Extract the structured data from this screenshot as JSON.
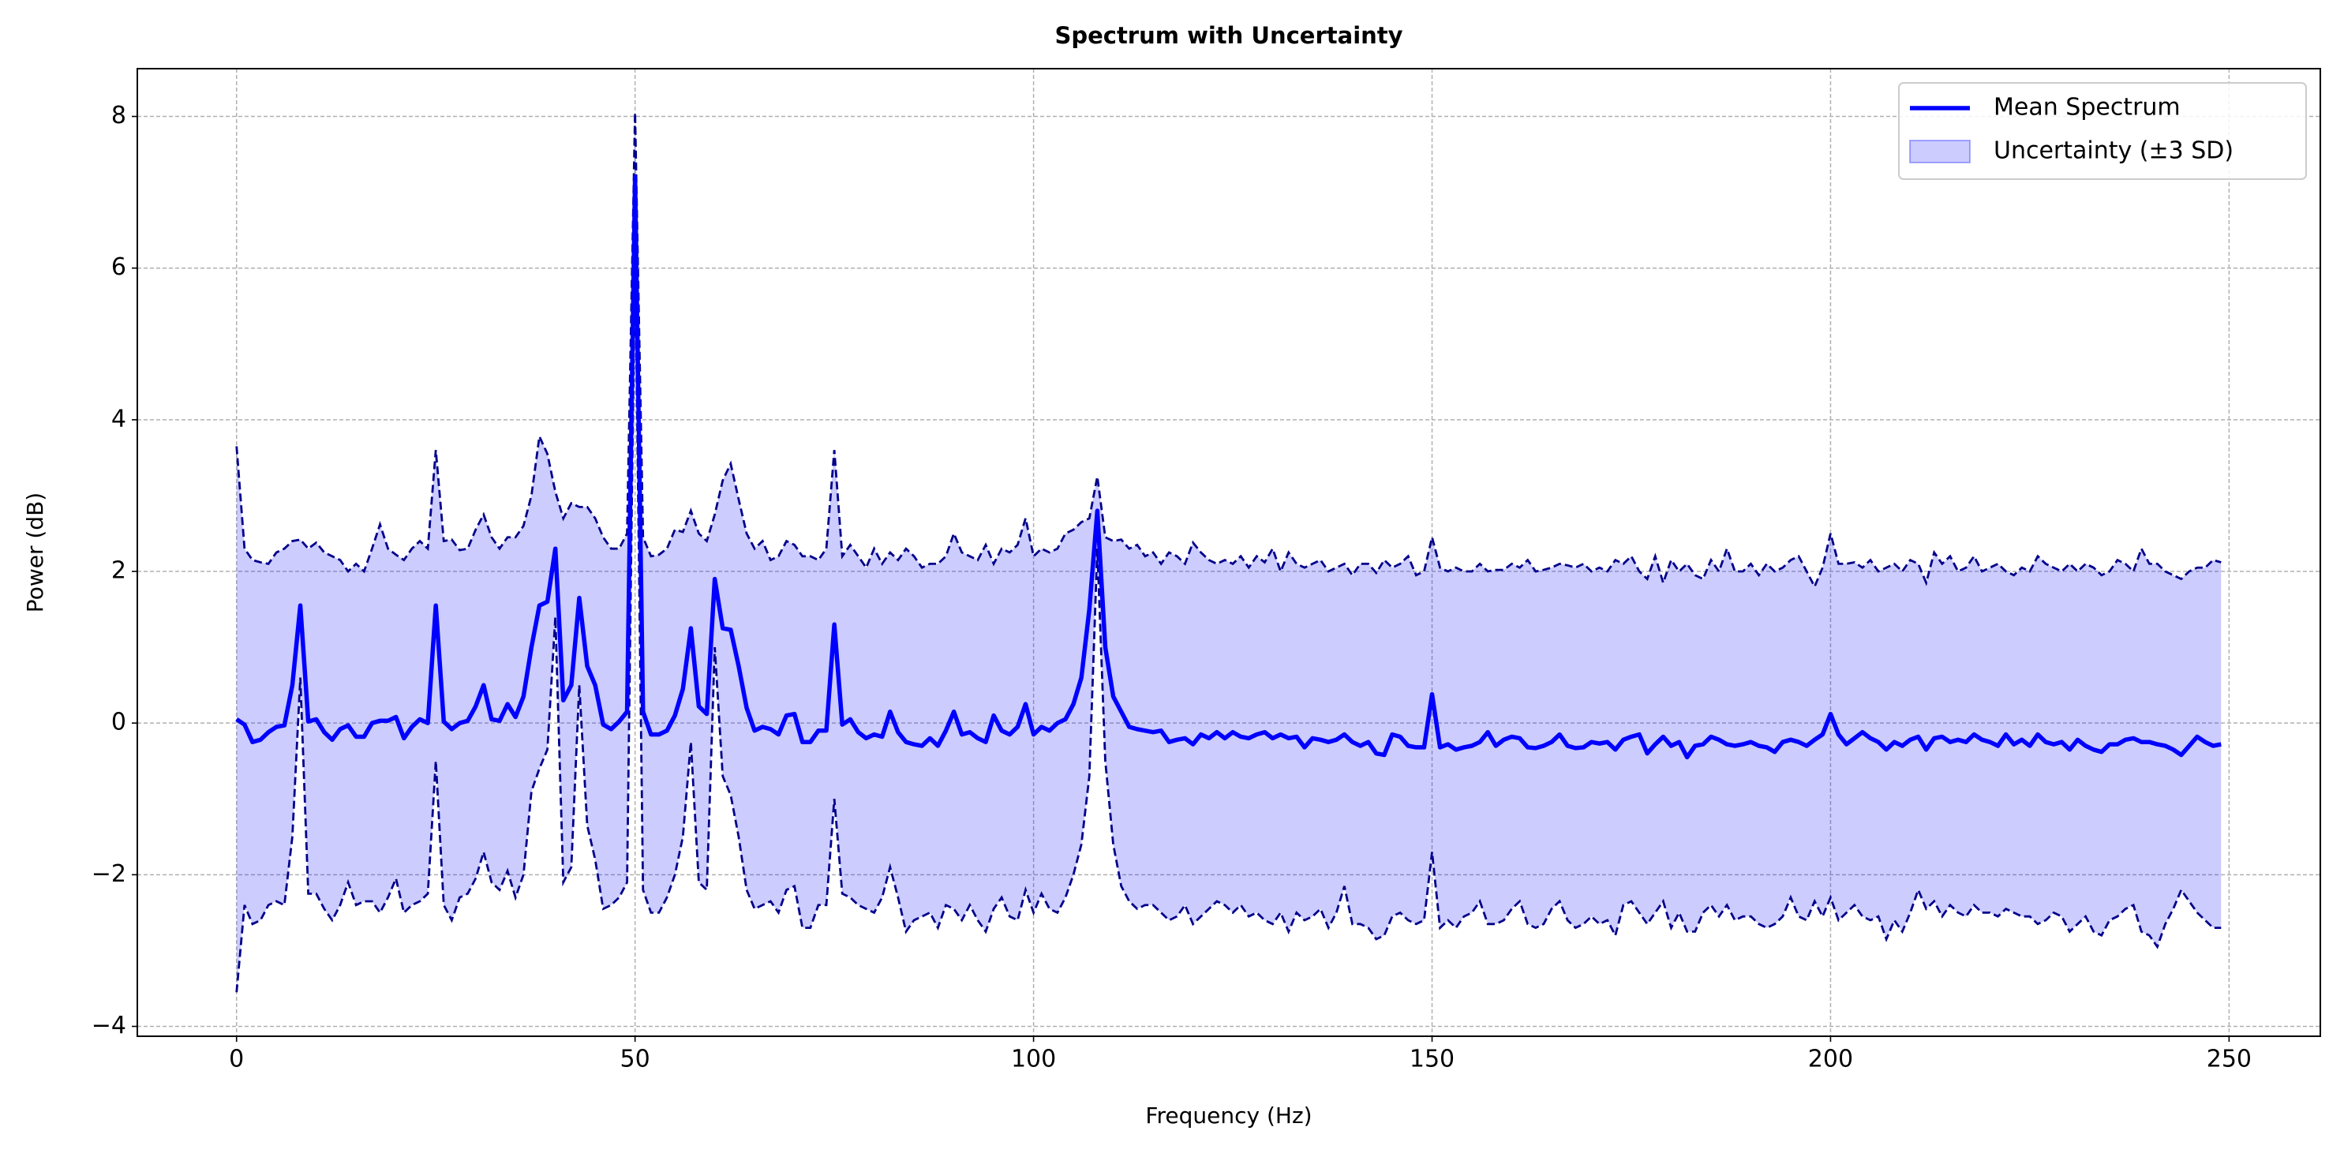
{
  "chart_data": {
    "type": "line",
    "title": "Spectrum with Uncertainty",
    "xlabel": "Frequency (Hz)",
    "ylabel": "Power (dB)",
    "xlim": [
      -12.45,
      261.45
    ],
    "ylim": [
      -4.13,
      8.63
    ],
    "xticks": [
      0,
      50,
      100,
      150,
      200,
      250
    ],
    "yticks": [
      {
        "value": -4,
        "label": "−4"
      },
      {
        "value": -2,
        "label": "−2"
      },
      0,
      2,
      4,
      6,
      8
    ],
    "grid": true,
    "legend": "upper right",
    "x": [
      0,
      1,
      2,
      3,
      4,
      5,
      6,
      7,
      8,
      9,
      10,
      11,
      12,
      13,
      14,
      15,
      16,
      17,
      18,
      19,
      20,
      21,
      22,
      23,
      24,
      25,
      26,
      27,
      28,
      29,
      30,
      31,
      32,
      33,
      34,
      35,
      36,
      37,
      38,
      39,
      40,
      41,
      42,
      43,
      44,
      45,
      46,
      47,
      48,
      49,
      50,
      51,
      52,
      53,
      54,
      55,
      56,
      57,
      58,
      59,
      60,
      61,
      62,
      63,
      64,
      65,
      66,
      67,
      68,
      69,
      70,
      71,
      72,
      73,
      74,
      75,
      76,
      77,
      78,
      79,
      80,
      81,
      82,
      83,
      84,
      85,
      86,
      87,
      88,
      89,
      90,
      91,
      92,
      93,
      94,
      95,
      96,
      97,
      98,
      99,
      100,
      101,
      102,
      103,
      104,
      105,
      106,
      107,
      108,
      109,
      110,
      111,
      112,
      113,
      114,
      115,
      116,
      117,
      118,
      119,
      120,
      121,
      122,
      123,
      124,
      125,
      126,
      127,
      128,
      129,
      130,
      131,
      132,
      133,
      134,
      135,
      136,
      137,
      138,
      139,
      140,
      141,
      142,
      143,
      144,
      145,
      146,
      147,
      148,
      149,
      150,
      151,
      152,
      153,
      154,
      155,
      156,
      157,
      158,
      159,
      160,
      161,
      162,
      163,
      164,
      165,
      166,
      167,
      168,
      169,
      170,
      171,
      172,
      173,
      174,
      175,
      176,
      177,
      178,
      179,
      180,
      181,
      182,
      183,
      184,
      185,
      186,
      187,
      188,
      189,
      190,
      191,
      192,
      193,
      194,
      195,
      196,
      197,
      198,
      199,
      200,
      201,
      202,
      203,
      204,
      205,
      206,
      207,
      208,
      209,
      210,
      211,
      212,
      213,
      214,
      215,
      216,
      217,
      218,
      219,
      220,
      221,
      222,
      223,
      224,
      225,
      226,
      227,
      228,
      229,
      230,
      231,
      232,
      233,
      234,
      235,
      236,
      237,
      238,
      239,
      240,
      241,
      242,
      243,
      244,
      245,
      246,
      247,
      248,
      249
    ],
    "series": [
      {
        "name": "Mean Spectrum",
        "color": "#0000ff",
        "values": [
          0.05,
          -0.02,
          -0.25,
          -0.22,
          -0.12,
          -0.05,
          -0.03,
          0.5,
          1.55,
          0.02,
          0.05,
          -0.12,
          -0.22,
          -0.08,
          -0.03,
          -0.18,
          -0.18,
          0.0,
          0.03,
          0.03,
          0.08,
          -0.2,
          -0.05,
          0.05,
          0.0,
          1.55,
          0.02,
          -0.08,
          0.0,
          0.03,
          0.22,
          0.5,
          0.05,
          0.03,
          0.25,
          0.08,
          0.35,
          1.0,
          1.55,
          1.6,
          2.3,
          0.3,
          0.5,
          1.65,
          0.75,
          0.5,
          -0.02,
          -0.08,
          0.02,
          0.15,
          7.2,
          0.15,
          -0.15,
          -0.15,
          -0.1,
          0.1,
          0.45,
          1.25,
          0.22,
          0.12,
          1.9,
          1.25,
          1.23,
          0.75,
          0.2,
          -0.1,
          -0.05,
          -0.08,
          -0.15,
          0.1,
          0.12,
          -0.25,
          -0.25,
          -0.1,
          -0.1,
          1.3,
          -0.02,
          0.05,
          -0.12,
          -0.2,
          -0.15,
          -0.18,
          0.15,
          -0.12,
          -0.25,
          -0.28,
          -0.3,
          -0.2,
          -0.3,
          -0.1,
          0.15,
          -0.15,
          -0.12,
          -0.2,
          -0.25,
          0.1,
          -0.1,
          -0.15,
          -0.05,
          0.25,
          -0.15,
          -0.05,
          -0.1,
          0.0,
          0.05,
          0.25,
          0.6,
          1.5,
          2.8,
          1.0,
          0.35,
          0.15,
          -0.05,
          -0.08,
          -0.1,
          -0.12,
          -0.1,
          -0.25,
          -0.22,
          -0.2,
          -0.28,
          -0.15,
          -0.2,
          -0.12,
          -0.2,
          -0.12,
          -0.18,
          -0.2,
          -0.15,
          -0.12,
          -0.2,
          -0.15,
          -0.2,
          -0.18,
          -0.32,
          -0.2,
          -0.22,
          -0.25,
          -0.22,
          -0.15,
          -0.25,
          -0.3,
          -0.25,
          -0.4,
          -0.42,
          -0.15,
          -0.18,
          -0.3,
          -0.32,
          -0.32,
          0.38,
          -0.32,
          -0.28,
          -0.35,
          -0.32,
          -0.3,
          -0.25,
          -0.12,
          -0.3,
          -0.22,
          -0.18,
          -0.2,
          -0.32,
          -0.33,
          -0.3,
          -0.25,
          -0.15,
          -0.3,
          -0.33,
          -0.32,
          -0.25,
          -0.27,
          -0.25,
          -0.35,
          -0.22,
          -0.18,
          -0.15,
          -0.4,
          -0.28,
          -0.18,
          -0.3,
          -0.25,
          -0.45,
          -0.3,
          -0.28,
          -0.18,
          -0.22,
          -0.28,
          -0.3,
          -0.28,
          -0.25,
          -0.3,
          -0.32,
          -0.38,
          -0.25,
          -0.22,
          -0.25,
          -0.3,
          -0.22,
          -0.15,
          0.12,
          -0.15,
          -0.28,
          -0.2,
          -0.12,
          -0.2,
          -0.25,
          -0.35,
          -0.25,
          -0.3,
          -0.22,
          -0.18,
          -0.35,
          -0.2,
          -0.18,
          -0.25,
          -0.22,
          -0.25,
          -0.15,
          -0.22,
          -0.25,
          -0.3,
          -0.15,
          -0.28,
          -0.22,
          -0.3,
          -0.15,
          -0.25,
          -0.28,
          -0.25,
          -0.35,
          -0.22,
          -0.3,
          -0.35,
          -0.38,
          -0.28,
          -0.28,
          -0.22,
          -0.2,
          -0.25,
          -0.25,
          -0.28,
          -0.3,
          -0.35,
          -0.42,
          -0.3,
          -0.18,
          -0.25,
          -0.3,
          -0.28
        ]
      }
    ],
    "band": {
      "name": "Uncertainty (±3 SD)",
      "color": "#0000ff",
      "line_color": "#00008b",
      "upper": [
        3.65,
        2.3,
        2.15,
        2.12,
        2.1,
        2.25,
        2.3,
        2.4,
        2.42,
        2.3,
        2.38,
        2.25,
        2.2,
        2.15,
        2.0,
        2.1,
        2.0,
        2.3,
        2.62,
        2.3,
        2.22,
        2.15,
        2.3,
        2.4,
        2.3,
        3.6,
        2.4,
        2.42,
        2.28,
        2.3,
        2.55,
        2.75,
        2.45,
        2.3,
        2.45,
        2.45,
        2.6,
        3.0,
        3.78,
        3.55,
        3.05,
        2.7,
        2.9,
        2.85,
        2.85,
        2.7,
        2.45,
        2.3,
        2.3,
        2.5,
        8.05,
        2.45,
        2.2,
        2.22,
        2.3,
        2.55,
        2.52,
        2.8,
        2.5,
        2.4,
        2.75,
        3.2,
        3.42,
        2.95,
        2.5,
        2.3,
        2.4,
        2.15,
        2.2,
        2.4,
        2.35,
        2.2,
        2.2,
        2.15,
        2.3,
        3.6,
        2.2,
        2.35,
        2.2,
        2.05,
        2.3,
        2.1,
        2.25,
        2.15,
        2.3,
        2.2,
        2.05,
        2.1,
        2.1,
        2.2,
        2.5,
        2.25,
        2.2,
        2.15,
        2.35,
        2.1,
        2.3,
        2.25,
        2.35,
        2.7,
        2.2,
        2.3,
        2.25,
        2.3,
        2.5,
        2.55,
        2.65,
        2.7,
        3.25,
        2.45,
        2.4,
        2.42,
        2.3,
        2.35,
        2.2,
        2.25,
        2.1,
        2.25,
        2.2,
        2.1,
        2.38,
        2.25,
        2.15,
        2.1,
        2.15,
        2.1,
        2.2,
        2.05,
        2.2,
        2.12,
        2.3,
        2.0,
        2.25,
        2.1,
        2.05,
        2.1,
        2.15,
        2.0,
        2.05,
        2.1,
        1.95,
        2.1,
        2.1,
        1.98,
        2.15,
        2.05,
        2.1,
        2.2,
        1.95,
        2.0,
        2.45,
        2.05,
        2.0,
        2.05,
        2.0,
        2.0,
        2.1,
        2.0,
        2.02,
        2.02,
        2.1,
        2.05,
        2.15,
        2.0,
        2.02,
        2.05,
        2.1,
        2.08,
        2.05,
        2.1,
        2.0,
        2.05,
        2.0,
        2.15,
        2.1,
        2.2,
        2.0,
        1.9,
        2.2,
        1.85,
        2.15,
        2.0,
        2.1,
        1.95,
        1.9,
        2.15,
        2.0,
        2.3,
        2.0,
        2.0,
        2.1,
        1.95,
        2.1,
        2.0,
        2.05,
        2.15,
        2.2,
        2.0,
        1.8,
        2.05,
        2.5,
        2.1,
        2.1,
        2.12,
        2.05,
        2.15,
        2.0,
        2.05,
        2.1,
        2.0,
        2.15,
        2.1,
        1.85,
        2.25,
        2.1,
        2.2,
        2.0,
        2.05,
        2.2,
        2.0,
        2.05,
        2.1,
        2.0,
        1.95,
        2.05,
        2.0,
        2.2,
        2.1,
        2.05,
        2.0,
        2.1,
        2.0,
        2.1,
        2.05,
        1.95,
        2.0,
        2.15,
        2.1,
        2.0,
        2.3,
        2.1,
        2.1,
        2.0,
        1.95,
        1.9,
        2.0,
        2.05,
        2.05,
        2.15,
        2.12
      ],
      "lower": [
        -3.55,
        -2.4,
        -2.65,
        -2.6,
        -2.4,
        -2.35,
        -2.4,
        -1.5,
        0.6,
        -2.25,
        -2.25,
        -2.45,
        -2.6,
        -2.4,
        -2.1,
        -2.4,
        -2.35,
        -2.35,
        -2.5,
        -2.3,
        -2.05,
        -2.5,
        -2.4,
        -2.35,
        -2.25,
        -0.5,
        -2.4,
        -2.6,
        -2.3,
        -2.25,
        -2.05,
        -1.7,
        -2.1,
        -2.2,
        -1.95,
        -2.3,
        -2.0,
        -0.9,
        -0.6,
        -0.35,
        1.4,
        -2.1,
        -1.9,
        0.5,
        -1.35,
        -1.8,
        -2.45,
        -2.4,
        -2.3,
        -2.1,
        6.3,
        -2.2,
        -2.5,
        -2.5,
        -2.3,
        -2.0,
        -1.5,
        -0.25,
        -2.1,
        -2.2,
        1.0,
        -0.7,
        -0.95,
        -1.5,
        -2.2,
        -2.45,
        -2.4,
        -2.35,
        -2.5,
        -2.2,
        -2.15,
        -2.7,
        -2.7,
        -2.4,
        -2.4,
        -1.0,
        -2.25,
        -2.3,
        -2.4,
        -2.45,
        -2.5,
        -2.3,
        -1.9,
        -2.3,
        -2.75,
        -2.6,
        -2.55,
        -2.5,
        -2.7,
        -2.4,
        -2.45,
        -2.6,
        -2.4,
        -2.6,
        -2.75,
        -2.45,
        -2.3,
        -2.55,
        -2.6,
        -2.2,
        -2.5,
        -2.25,
        -2.45,
        -2.5,
        -2.3,
        -2.0,
        -1.6,
        -0.7,
        2.3,
        -0.5,
        -1.6,
        -2.15,
        -2.35,
        -2.45,
        -2.4,
        -2.4,
        -2.5,
        -2.6,
        -2.55,
        -2.4,
        -2.65,
        -2.55,
        -2.45,
        -2.35,
        -2.4,
        -2.5,
        -2.4,
        -2.55,
        -2.5,
        -2.6,
        -2.65,
        -2.5,
        -2.75,
        -2.5,
        -2.6,
        -2.55,
        -2.45,
        -2.7,
        -2.5,
        -2.15,
        -2.65,
        -2.65,
        -2.7,
        -2.85,
        -2.8,
        -2.55,
        -2.5,
        -2.6,
        -2.65,
        -2.6,
        -1.7,
        -2.7,
        -2.6,
        -2.7,
        -2.55,
        -2.5,
        -2.35,
        -2.65,
        -2.65,
        -2.6,
        -2.45,
        -2.35,
        -2.65,
        -2.7,
        -2.65,
        -2.45,
        -2.35,
        -2.6,
        -2.7,
        -2.65,
        -2.55,
        -2.65,
        -2.6,
        -2.8,
        -2.4,
        -2.35,
        -2.5,
        -2.65,
        -2.5,
        -2.35,
        -2.7,
        -2.5,
        -2.75,
        -2.75,
        -2.5,
        -2.4,
        -2.55,
        -2.4,
        -2.6,
        -2.55,
        -2.55,
        -2.65,
        -2.7,
        -2.65,
        -2.55,
        -2.3,
        -2.55,
        -2.6,
        -2.35,
        -2.55,
        -2.3,
        -2.6,
        -2.5,
        -2.4,
        -2.55,
        -2.6,
        -2.55,
        -2.85,
        -2.6,
        -2.75,
        -2.5,
        -2.2,
        -2.45,
        -2.35,
        -2.55,
        -2.4,
        -2.5,
        -2.55,
        -2.4,
        -2.5,
        -2.5,
        -2.55,
        -2.45,
        -2.5,
        -2.55,
        -2.55,
        -2.65,
        -2.6,
        -2.5,
        -2.55,
        -2.75,
        -2.65,
        -2.55,
        -2.75,
        -2.8,
        -2.6,
        -2.55,
        -2.45,
        -2.4,
        -2.75,
        -2.8,
        -2.95,
        -2.65,
        -2.45,
        -2.2,
        -2.35,
        -2.5,
        -2.6,
        -2.7,
        -2.7
      ]
    }
  }
}
